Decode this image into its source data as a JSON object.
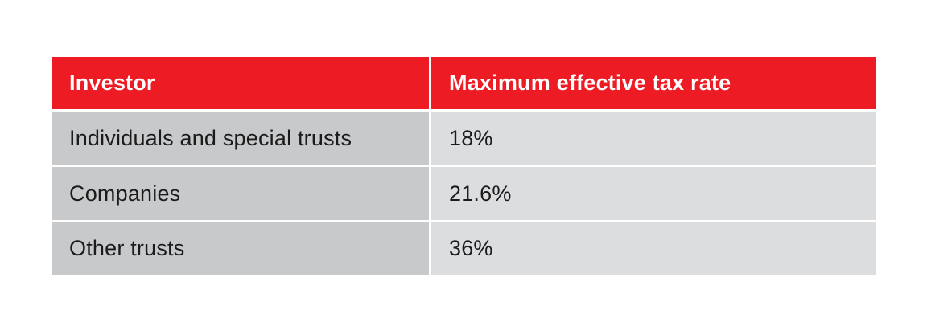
{
  "table": {
    "headers": [
      "Investor",
      "Maximum effective tax rate"
    ],
    "rows": [
      [
        "Individuals and special trusts",
        "18%"
      ],
      [
        "Companies",
        "21.6%"
      ],
      [
        "Other trusts",
        "36%"
      ]
    ]
  },
  "colors": {
    "header_bg": "#ed1c24",
    "header_text": "#ffffff",
    "col1_bg": "#c8c9cb",
    "col2_bg": "#dcdddf",
    "cell_text": "#1b1b1b"
  }
}
